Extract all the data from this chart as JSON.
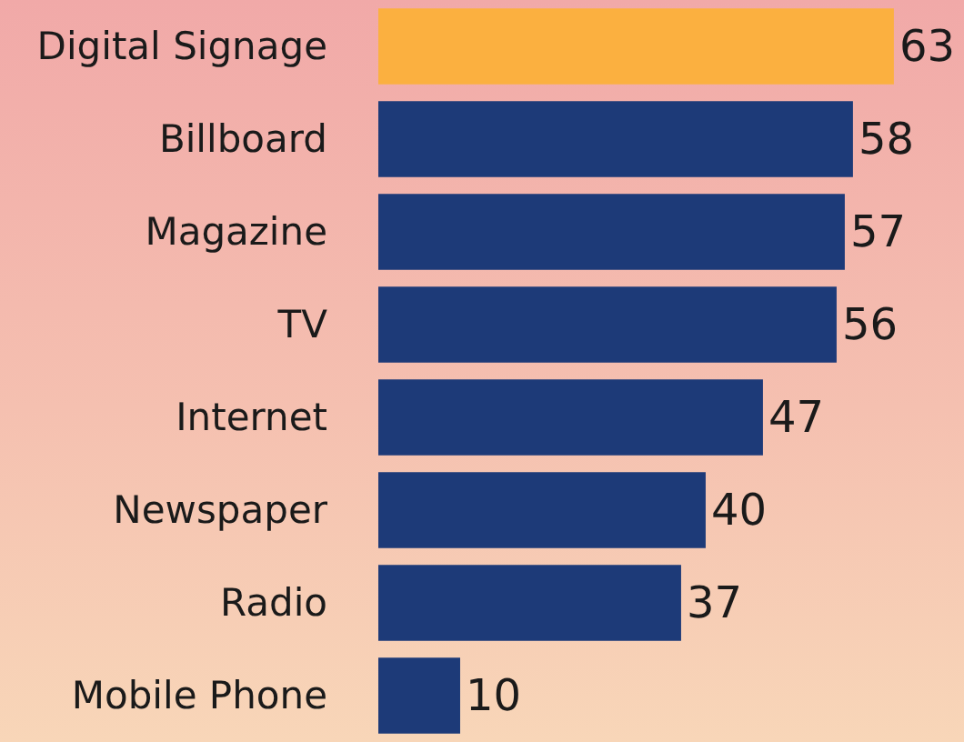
{
  "chart_data": {
    "type": "bar",
    "orientation": "horizontal",
    "categories": [
      "Digital Signage",
      "Billboard",
      "Magazine",
      "TV",
      "Internet",
      "Newspaper",
      "Radio",
      "Mobile Phone"
    ],
    "values": [
      63,
      58,
      57,
      56,
      47,
      40,
      37,
      10
    ],
    "colors": [
      "#fbb040",
      "#1d3a78",
      "#1d3a78",
      "#1d3a78",
      "#1d3a78",
      "#1d3a78",
      "#1d3a78",
      "#1d3a78"
    ],
    "data_labels": true
  }
}
